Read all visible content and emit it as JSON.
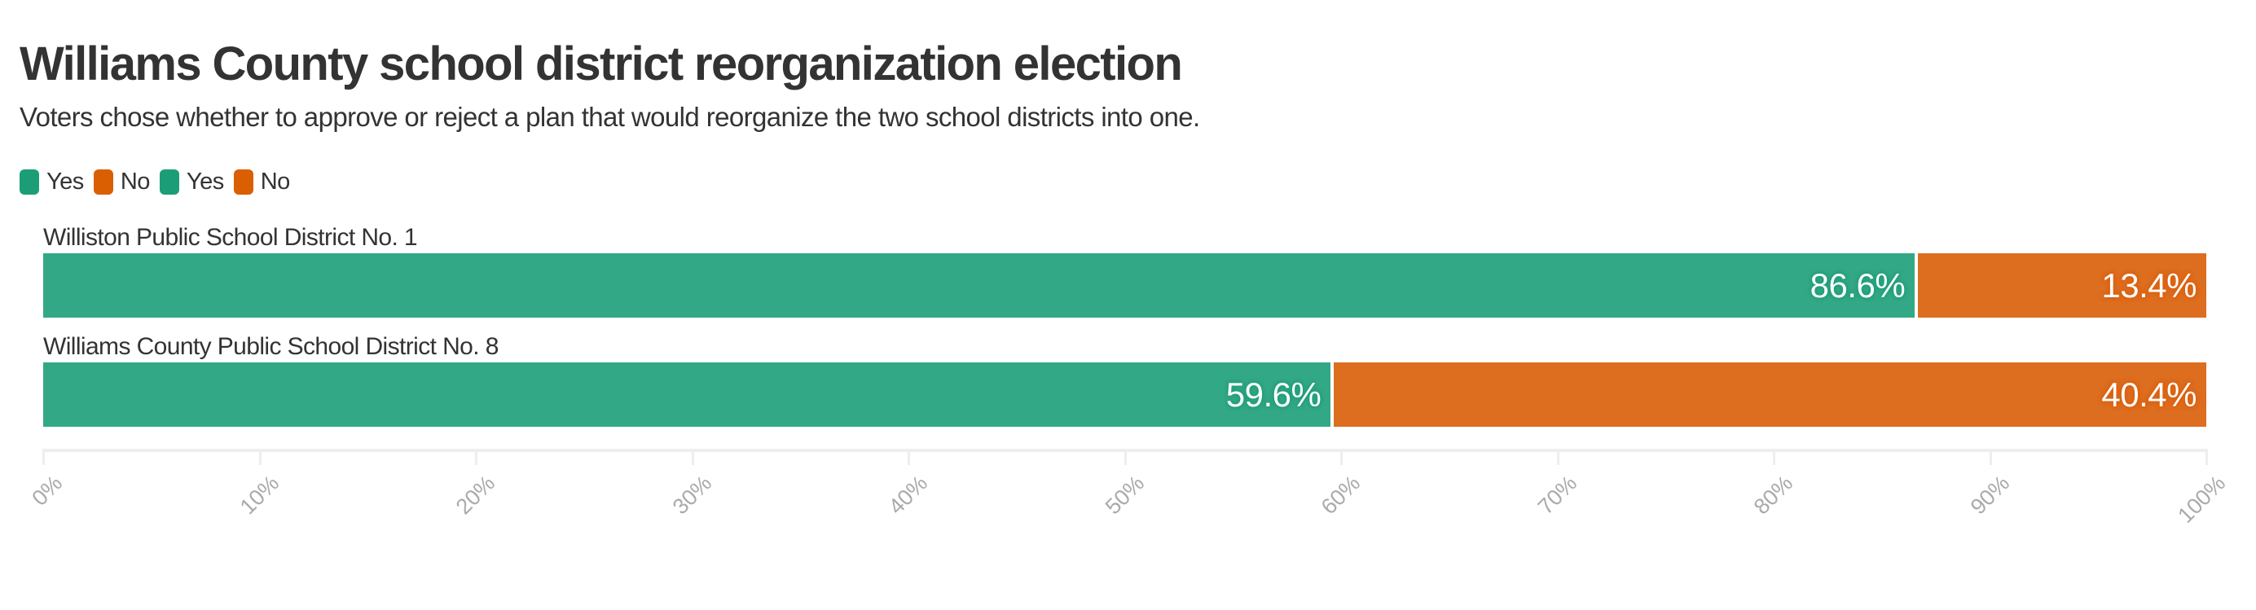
{
  "title": "Williams County school district reorganization election",
  "subtitle": "Voters chose whether to approve or reject a plan that would reorganize the two school districts into one.",
  "legend": [
    {
      "label": "Yes",
      "color": "#1b9e77"
    },
    {
      "label": "No",
      "color": "#d95f02"
    },
    {
      "label": "Yes",
      "color": "#1b9e77"
    },
    {
      "label": "No",
      "color": "#d95f02"
    }
  ],
  "colors": {
    "yes_bar": "#33a887",
    "no_bar": "#dd6d1f",
    "axis": "#eeeeee",
    "tick_label": "#aaaaaa"
  },
  "rows": [
    {
      "label": "Williston Public School District No. 1",
      "yes": 86.6,
      "no": 13.4,
      "yes_label": "86.6%",
      "no_label": "13.4%"
    },
    {
      "label": "Williams County Public School District No. 8",
      "yes": 59.6,
      "no": 40.4,
      "yes_label": "59.6%",
      "no_label": "40.4%"
    }
  ],
  "axis": {
    "ticks": [
      "0%",
      "10%",
      "20%",
      "30%",
      "40%",
      "50%",
      "60%",
      "70%",
      "80%",
      "90%",
      "100%"
    ]
  },
  "chart_data": {
    "type": "bar",
    "orientation": "horizontal",
    "stacked": true,
    "title": "Williams County school district reorganization election",
    "subtitle": "Voters chose whether to approve or reject a plan that would reorganize the two school districts into one.",
    "categories": [
      "Williston Public School District No. 1",
      "Williams County Public School District No. 8"
    ],
    "series": [
      {
        "name": "Yes",
        "values": [
          86.6,
          59.6
        ],
        "color": "#1b9e77"
      },
      {
        "name": "No",
        "values": [
          13.4,
          40.4
        ],
        "color": "#d95f02"
      }
    ],
    "xlabel": "",
    "ylabel": "",
    "xlim": [
      0,
      100
    ],
    "x_ticks": [
      "0%",
      "10%",
      "20%",
      "30%",
      "40%",
      "50%",
      "60%",
      "70%",
      "80%",
      "90%",
      "100%"
    ],
    "grid": false,
    "legend_position": "top-left",
    "legend_entries": [
      "Yes",
      "No",
      "Yes",
      "No"
    ]
  }
}
